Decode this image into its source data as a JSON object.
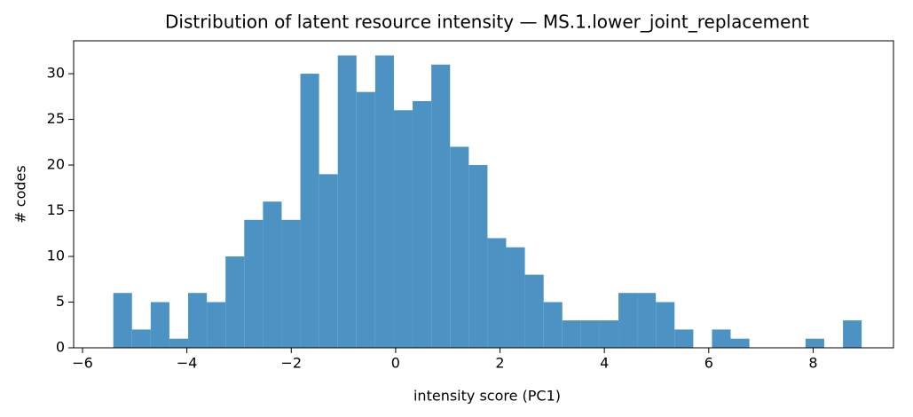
{
  "chart_data": {
    "type": "histogram",
    "title": "Distribution of latent resource intensity — MS.1.lower_joint_replacement",
    "x_label": "intensity score (PC1)",
    "y_label": "# codes",
    "bins": [
      -5.41,
      -5.052,
      -4.693,
      -4.335,
      -3.976,
      -3.618,
      -3.259,
      -2.901,
      -2.542,
      -2.184,
      -1.825,
      -1.467,
      -1.108,
      -0.75,
      -0.391,
      -0.033,
      0.326,
      0.684,
      1.043,
      1.402,
      1.76,
      2.118,
      2.477,
      2.836,
      3.194,
      3.553,
      3.911,
      4.27,
      4.628,
      4.986,
      5.345,
      5.704,
      6.062,
      6.42,
      6.779,
      7.138,
      7.496,
      7.854,
      8.213,
      8.572,
      8.93
    ],
    "values": [
      6,
      2,
      5,
      1,
      6,
      5,
      10,
      14,
      16,
      14,
      30,
      19,
      32,
      28,
      32,
      26,
      27,
      31,
      22,
      20,
      12,
      11,
      8,
      5,
      3,
      3,
      3,
      6,
      6,
      5,
      2,
      0,
      2,
      1,
      0,
      0,
      0,
      1,
      0,
      3
    ],
    "color": "#4c92c3",
    "xlim": [
      -6.17,
      9.54
    ],
    "xticks": [
      {
        "value": -6,
        "label": "−6"
      },
      {
        "value": -4,
        "label": "−4"
      },
      {
        "value": -2,
        "label": "−2"
      },
      0,
      2,
      4,
      6,
      8
    ],
    "ylim": [
      0,
      33.6
    ],
    "yticks": [
      0,
      5,
      10,
      15,
      20,
      25,
      30
    ]
  }
}
